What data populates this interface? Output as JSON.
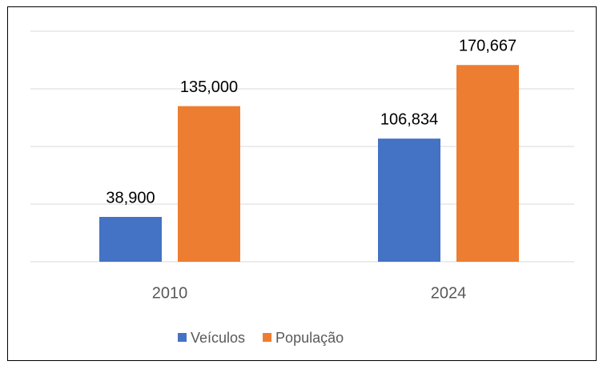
{
  "chart_data": {
    "type": "bar",
    "categories": [
      "2010",
      "2024"
    ],
    "series": [
      {
        "name": "Veículos",
        "color": "#4472c4",
        "values": [
          38900,
          106834
        ],
        "value_labels": [
          "38,900",
          "106,834"
        ]
      },
      {
        "name": "População",
        "color": "#ed7d31",
        "values": [
          135000,
          170667
        ],
        "value_labels": [
          "135,000",
          "170,667"
        ]
      }
    ],
    "ylim": [
      0,
      200000
    ],
    "yticks": [
      0,
      50000,
      100000,
      150000,
      200000
    ],
    "grid": true,
    "legend": "bottom"
  }
}
